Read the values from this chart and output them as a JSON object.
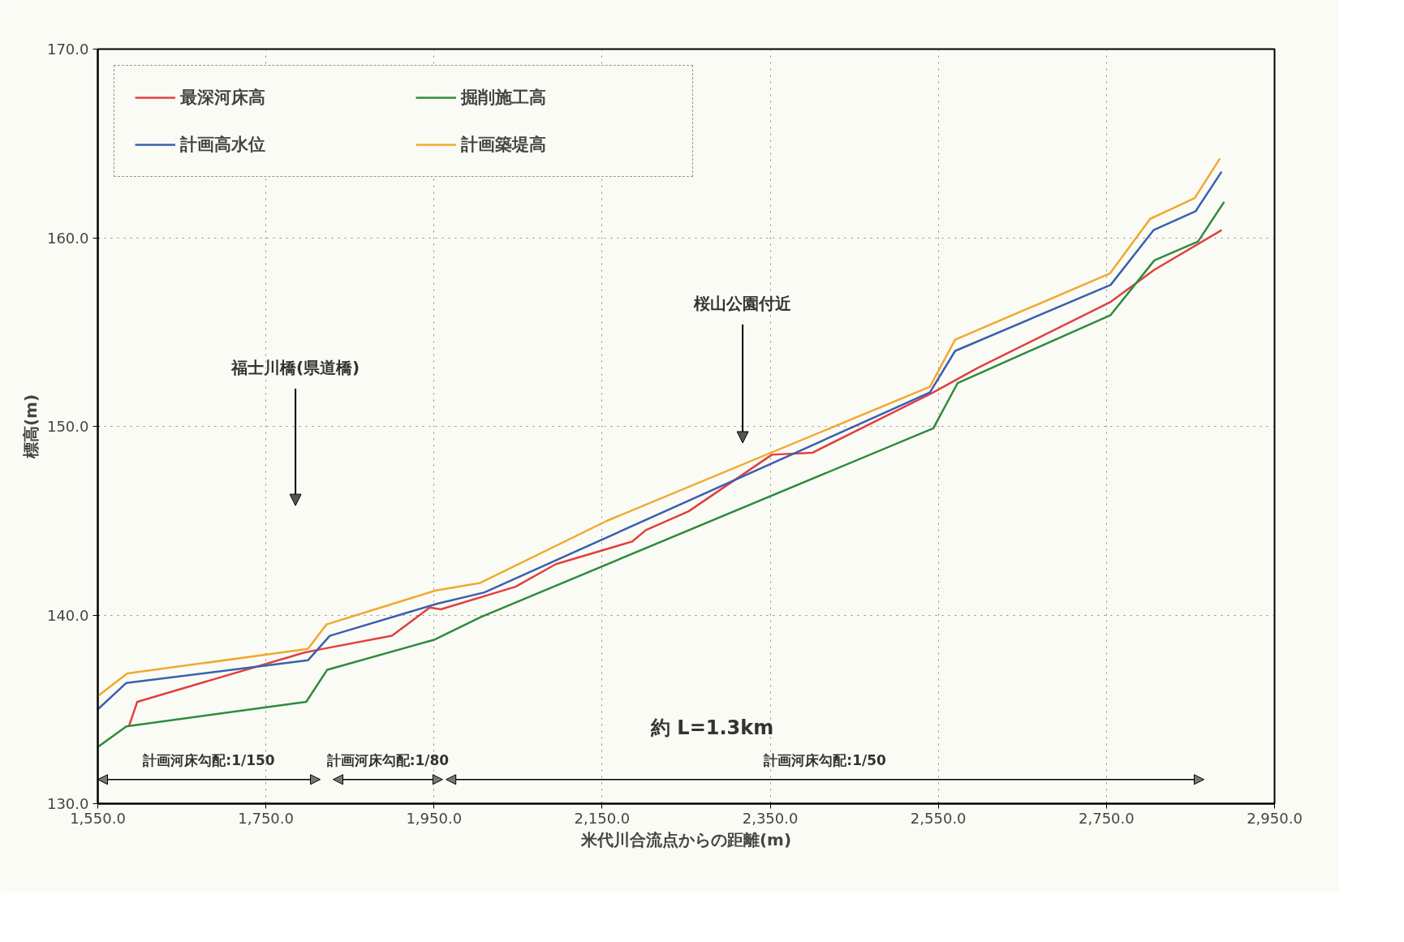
{
  "chart_data": {
    "type": "line",
    "xlabel": "米代川合流点からの距離(m)",
    "ylabel": "標高(m)",
    "xlim": [
      1550,
      2950
    ],
    "ylim": [
      130,
      170
    ],
    "xticks": [
      {
        "value": 1550,
        "label": "1,550.0"
      },
      {
        "value": 1750,
        "label": "1,750.0"
      },
      {
        "value": 1950,
        "label": "1,950.0"
      },
      {
        "value": 2150,
        "label": "2,150.0"
      },
      {
        "value": 2350,
        "label": "2,350.0"
      },
      {
        "value": 2550,
        "label": "2,550.0"
      },
      {
        "value": 2750,
        "label": "2,750.0"
      },
      {
        "value": 2950,
        "label": "2,950.0"
      }
    ],
    "yticks": [
      {
        "value": 130,
        "label": "130.0"
      },
      {
        "value": 140,
        "label": "140.0"
      },
      {
        "value": 150,
        "label": "150.0"
      },
      {
        "value": 160,
        "label": "160.0"
      },
      {
        "value": 170,
        "label": "170.0"
      }
    ],
    "grid": true,
    "legend": "top left",
    "line_style": "solid",
    "series": [
      {
        "name": "最深河床高",
        "color": "#e04040",
        "x": [
          1587,
          1597,
          1795,
          1817,
          1900,
          1945,
          1958,
          2047,
          2095,
          2186,
          2202,
          2253,
          2352,
          2400,
          2544,
          2597,
          2755,
          2807,
          2887
        ],
        "values": [
          134.1,
          135.4,
          138.0,
          138.2,
          138.9,
          140.4,
          140.3,
          141.5,
          142.7,
          143.9,
          144.5,
          145.5,
          148.5,
          148.6,
          151.8,
          153.1,
          156.6,
          158.3,
          160.4
        ]
      },
      {
        "name": "計画高水位",
        "color": "#3a5fb0",
        "x": [
          1550,
          1584,
          1800,
          1826,
          1954,
          2010,
          2540,
          2570,
          2755,
          2806,
          2856,
          2887
        ],
        "values": [
          135.0,
          136.4,
          137.6,
          138.9,
          140.6,
          141.2,
          151.8,
          154.0,
          157.5,
          160.4,
          161.4,
          163.5
        ]
      },
      {
        "name": "掘削施工高",
        "color": "#2e8b3e",
        "x": [
          1550,
          1584,
          1798,
          1823,
          1951,
          2006,
          2544,
          2573,
          2755,
          2807,
          2859,
          2890
        ],
        "values": [
          133.0,
          134.1,
          135.4,
          137.1,
          138.7,
          139.9,
          149.9,
          152.3,
          155.9,
          158.8,
          159.8,
          161.9
        ]
      },
      {
        "name": "計画築堤高",
        "color": "#f0a830",
        "x": [
          1550,
          1585,
          1800,
          1822,
          1952,
          2005,
          2156,
          2540,
          2570,
          2754,
          2802,
          2855,
          2885
        ],
        "values": [
          135.7,
          136.9,
          138.2,
          139.5,
          141.3,
          141.7,
          145.0,
          152.1,
          154.6,
          158.1,
          161.0,
          162.1,
          164.2
        ]
      }
    ],
    "annotations": [
      "福士川橋(県道橋)",
      "桜山公園付近",
      "約 L=1.3km",
      "計画河床勾配:1/150",
      "計画河床勾配:1/80",
      "計画河床勾配:1/50"
    ]
  }
}
